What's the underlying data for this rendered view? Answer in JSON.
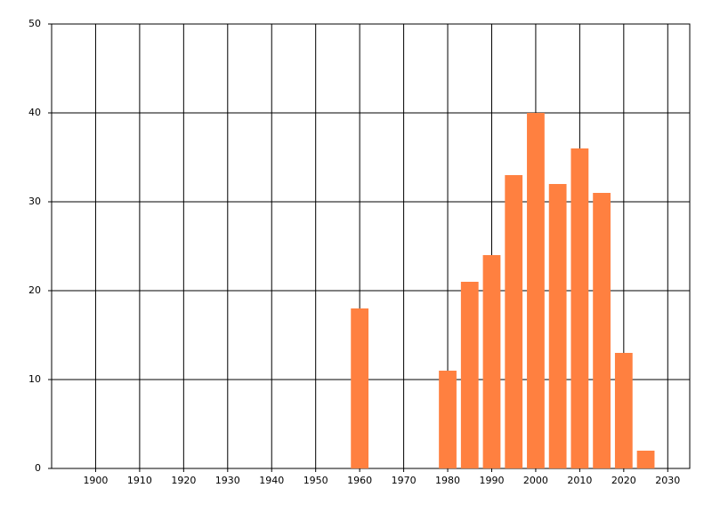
{
  "chart_data": {
    "type": "bar",
    "x": [
      1960,
      1980,
      1985,
      1990,
      1995,
      2000,
      2005,
      2010,
      2015,
      2020,
      2025
    ],
    "values": [
      18,
      11,
      21,
      24,
      33,
      40,
      32,
      36,
      31,
      13,
      2
    ],
    "color": "#ff8040",
    "xlim": [
      1890,
      2035
    ],
    "xticks": [
      1900,
      1910,
      1920,
      1930,
      1940,
      1950,
      1960,
      1970,
      1980,
      1990,
      2000,
      2010,
      2020,
      2030
    ],
    "ylim": [
      0,
      50
    ],
    "yticks": [
      0,
      10,
      20,
      30,
      40,
      50
    ],
    "grid": true
  }
}
